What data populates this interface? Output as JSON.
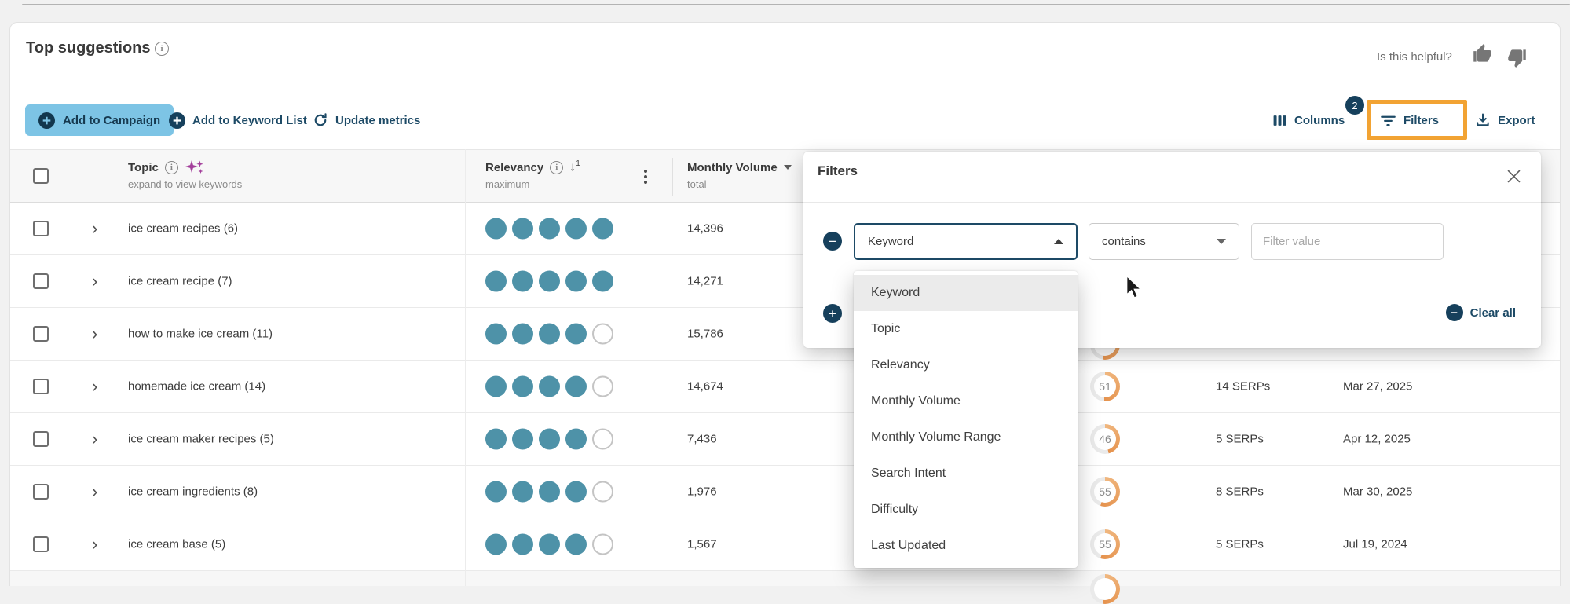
{
  "header": {
    "title": "Top suggestions",
    "helpful_label": "Is this helpful?"
  },
  "toolbar": {
    "add_to_campaign": "Add to Campaign",
    "add_to_keyword_list": "Add to Keyword List",
    "update_metrics": "Update metrics",
    "columns": "Columns",
    "filters": "Filters",
    "filters_badge": "2",
    "export": "Export"
  },
  "table": {
    "columns": {
      "topic": {
        "label": "Topic",
        "subtitle": "expand to view keywords"
      },
      "relevancy": {
        "label": "Relevancy",
        "subtitle": "maximum",
        "sort_arrow": "↓",
        "sort_rank": "1"
      },
      "monthly_volume": {
        "label": "Monthly Volume",
        "subtitle": "total"
      }
    },
    "rows": [
      {
        "topic": "ice cream recipes (6)",
        "relevancy": 5,
        "monthly_volume": "14,396",
        "difficulty": null,
        "serps": null,
        "last_updated": null
      },
      {
        "topic": "ice cream recipe (7)",
        "relevancy": 5,
        "monthly_volume": "14,271",
        "difficulty": null,
        "serps": null,
        "last_updated": null
      },
      {
        "topic": "how to make ice cream (11)",
        "relevancy": 4,
        "monthly_volume": "15,786",
        "difficulty": null,
        "serps": null,
        "last_updated": null
      },
      {
        "topic": "homemade ice cream (14)",
        "relevancy": 4,
        "monthly_volume": "14,674",
        "difficulty": 51,
        "serps": "14 SERPs",
        "last_updated": "Mar 27, 2025"
      },
      {
        "topic": "ice cream maker recipes (5)",
        "relevancy": 4,
        "monthly_volume": "7,436",
        "difficulty": 46,
        "serps": "5 SERPs",
        "last_updated": "Apr 12, 2025"
      },
      {
        "topic": "ice cream ingredients (8)",
        "relevancy": 4,
        "monthly_volume": "1,976",
        "difficulty": 55,
        "serps": "8 SERPs",
        "last_updated": "Mar 30, 2025"
      },
      {
        "topic": "ice cream base (5)",
        "relevancy": 4,
        "monthly_volume": "1,567",
        "difficulty": 55,
        "serps": "5 SERPs",
        "last_updated": "Jul 19, 2024"
      }
    ]
  },
  "filters_panel": {
    "title": "Filters",
    "field_value": "Keyword",
    "operator_value": "contains",
    "value_placeholder": "Filter value",
    "clear_all_label": "Clear all",
    "selected_option": "Keyword",
    "options": [
      "Keyword",
      "Topic",
      "Relevancy",
      "Monthly Volume",
      "Monthly Volume Range",
      "Search Intent",
      "Difficulty",
      "Last Updated"
    ]
  },
  "icons": {
    "expand_chevron": "›",
    "info_glyph": "i"
  },
  "colors": {
    "navy": "#1d4a66",
    "button_blue": "#7dc4e5",
    "annotation_orange": "#f2a333",
    "relevancy_teal": "#4e92a8",
    "difficulty_orange": "#e5924d",
    "sparkle_purple": "#a33f9b"
  }
}
